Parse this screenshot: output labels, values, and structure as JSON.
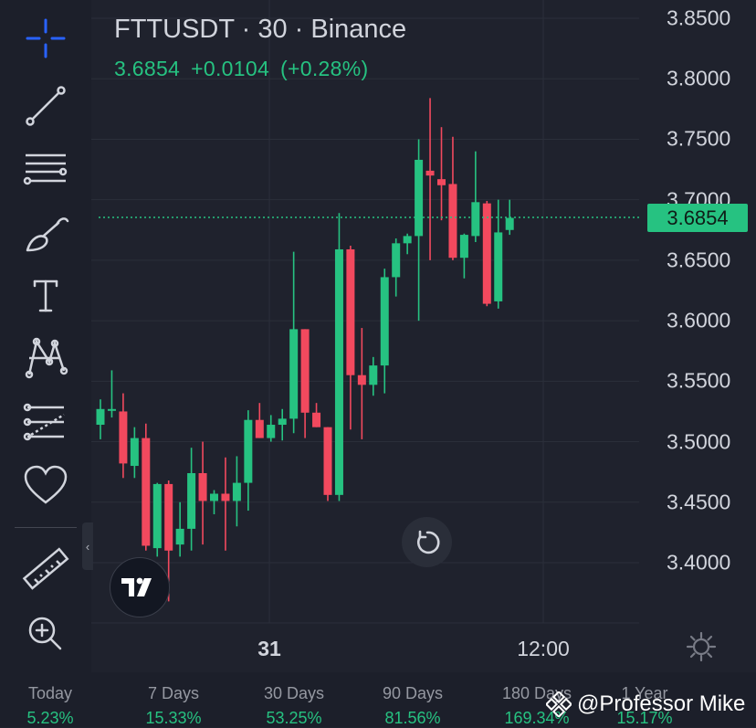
{
  "header": {
    "symbol_title": "FTTUSDT · 30 · Binance",
    "last_price": "3.6854",
    "change": "+0.0104",
    "change_pct": "(+0.28%)"
  },
  "toolbar": {
    "items": [
      "crosshair-icon",
      "trend-line-icon",
      "fib-retracement-icon",
      "brush-icon",
      "text-icon",
      "pattern-icon",
      "prediction-icon",
      "favorites-icon",
      "ruler-icon",
      "zoom-in-icon"
    ],
    "collapse_glyph": "‹"
  },
  "chart_data": {
    "type": "candlestick",
    "symbol": "FTTUSDT",
    "interval": "30",
    "exchange": "Binance",
    "ylim": [
      3.36,
      3.865
    ],
    "y_ticks": [
      "3.8500",
      "3.8000",
      "3.7500",
      "3.7000",
      "3.6500",
      "3.6000",
      "3.5500",
      "3.5000",
      "3.4500",
      "3.4000"
    ],
    "x_ticks": [
      "31",
      "12:00"
    ],
    "last_price": 3.6854,
    "colors": {
      "up": "#26c281",
      "down": "#f2495e",
      "grid": "#2b2f3a",
      "last_price_line": "#26c281"
    },
    "candles": [
      {
        "o": 3.514,
        "h": 3.535,
        "l": 3.502,
        "c": 3.527
      },
      {
        "o": 3.527,
        "h": 3.559,
        "l": 3.52,
        "c": 3.527
      },
      {
        "o": 3.525,
        "h": 3.54,
        "l": 3.47,
        "c": 3.482
      },
      {
        "o": 3.48,
        "h": 3.512,
        "l": 3.47,
        "c": 3.503
      },
      {
        "o": 3.503,
        "h": 3.515,
        "l": 3.41,
        "c": 3.414
      },
      {
        "o": 3.412,
        "h": 3.466,
        "l": 3.405,
        "c": 3.465
      },
      {
        "o": 3.465,
        "h": 3.468,
        "l": 3.368,
        "c": 3.41
      },
      {
        "o": 3.415,
        "h": 3.45,
        "l": 3.405,
        "c": 3.428
      },
      {
        "o": 3.428,
        "h": 3.495,
        "l": 3.41,
        "c": 3.474
      },
      {
        "o": 3.474,
        "h": 3.5,
        "l": 3.415,
        "c": 3.451
      },
      {
        "o": 3.451,
        "h": 3.46,
        "l": 3.44,
        "c": 3.457
      },
      {
        "o": 3.457,
        "h": 3.487,
        "l": 3.41,
        "c": 3.451
      },
      {
        "o": 3.451,
        "h": 3.488,
        "l": 3.43,
        "c": 3.466
      },
      {
        "o": 3.466,
        "h": 3.526,
        "l": 3.443,
        "c": 3.518
      },
      {
        "o": 3.518,
        "h": 3.532,
        "l": 3.503,
        "c": 3.503
      },
      {
        "o": 3.503,
        "h": 3.522,
        "l": 3.5,
        "c": 3.514
      },
      {
        "o": 3.514,
        "h": 3.527,
        "l": 3.501,
        "c": 3.519
      },
      {
        "o": 3.519,
        "h": 3.657,
        "l": 3.507,
        "c": 3.593
      },
      {
        "o": 3.593,
        "h": 3.593,
        "l": 3.503,
        "c": 3.524
      },
      {
        "o": 3.524,
        "h": 3.532,
        "l": 3.512,
        "c": 3.512
      },
      {
        "o": 3.512,
        "h": 3.512,
        "l": 3.451,
        "c": 3.456
      },
      {
        "o": 3.456,
        "h": 3.689,
        "l": 3.451,
        "c": 3.659
      },
      {
        "o": 3.659,
        "h": 3.662,
        "l": 3.51,
        "c": 3.555
      },
      {
        "o": 3.555,
        "h": 3.594,
        "l": 3.502,
        "c": 3.547
      },
      {
        "o": 3.547,
        "h": 3.57,
        "l": 3.538,
        "c": 3.563
      },
      {
        "o": 3.563,
        "h": 3.643,
        "l": 3.54,
        "c": 3.636
      },
      {
        "o": 3.636,
        "h": 3.668,
        "l": 3.62,
        "c": 3.664
      },
      {
        "o": 3.664,
        "h": 3.672,
        "l": 3.655,
        "c": 3.67
      },
      {
        "o": 3.67,
        "h": 3.75,
        "l": 3.6,
        "c": 3.733
      },
      {
        "o": 3.724,
        "h": 3.784,
        "l": 3.65,
        "c": 3.72
      },
      {
        "o": 3.717,
        "h": 3.76,
        "l": 3.683,
        "c": 3.712
      },
      {
        "o": 3.713,
        "h": 3.752,
        "l": 3.65,
        "c": 3.652
      },
      {
        "o": 3.652,
        "h": 3.672,
        "l": 3.635,
        "c": 3.671
      },
      {
        "o": 3.67,
        "h": 3.74,
        "l": 3.665,
        "c": 3.698
      },
      {
        "o": 3.697,
        "h": 3.699,
        "l": 3.612,
        "c": 3.614
      },
      {
        "o": 3.616,
        "h": 3.7,
        "l": 3.61,
        "c": 3.673
      },
      {
        "o": 3.675,
        "h": 3.7,
        "l": 3.671,
        "c": 3.685
      }
    ]
  },
  "performance": [
    {
      "label": "Today",
      "value": "5.23%"
    },
    {
      "label": "7 Days",
      "value": "15.33%"
    },
    {
      "label": "30 Days",
      "value": "53.25%"
    },
    {
      "label": "90 Days",
      "value": "81.56%"
    },
    {
      "label": "180 Days",
      "value": "169.34%"
    },
    {
      "label": "1 Year",
      "value": "15.17%"
    }
  ],
  "watermark": "@Professor Mike"
}
